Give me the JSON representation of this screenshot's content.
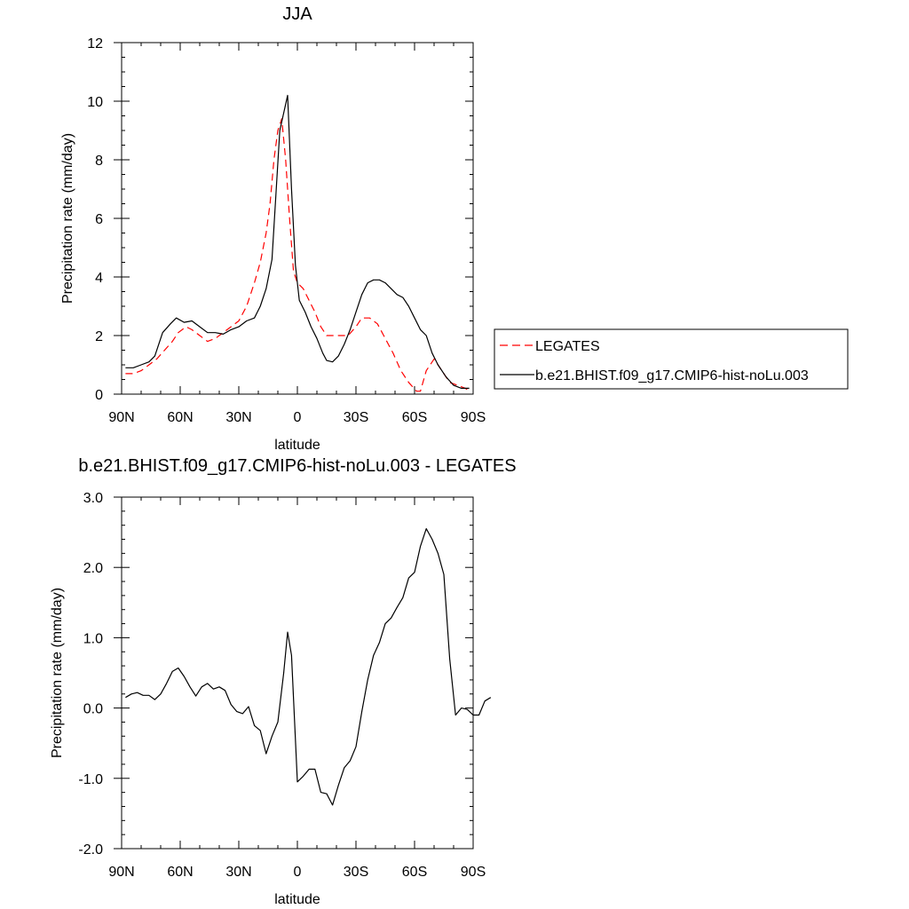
{
  "chart_data": [
    {
      "type": "line",
      "title": "JJA",
      "xlabel": "latitude",
      "ylabel": "Precipitation rate (mm/day)",
      "xlim": [
        90,
        -90
      ],
      "xticks": [
        {
          "value": 90,
          "label": "90N"
        },
        {
          "value": 60,
          "label": "60N"
        },
        {
          "value": 30,
          "label": "30N"
        },
        {
          "value": 0,
          "label": "0"
        },
        {
          "value": -30,
          "label": "30S"
        },
        {
          "value": -60,
          "label": "60S"
        },
        {
          "value": -90,
          "label": "90S"
        }
      ],
      "ylim": [
        0,
        12
      ],
      "yticks": [
        {
          "value": 0,
          "label": "0"
        },
        {
          "value": 2,
          "label": "2"
        },
        {
          "value": 4,
          "label": "4"
        },
        {
          "value": 6,
          "label": "6"
        },
        {
          "value": 8,
          "label": "8"
        },
        {
          "value": 10,
          "label": "10"
        },
        {
          "value": 12,
          "label": "12"
        }
      ],
      "legend_placement": "right",
      "series": [
        {
          "name": "LEGATES",
          "color": "#ff0000",
          "dash": "dashed",
          "points": [
            [
              88,
              0.7
            ],
            [
              84,
              0.7
            ],
            [
              80,
              0.8
            ],
            [
              76,
              1.0
            ],
            [
              72,
              1.2
            ],
            [
              68,
              1.5
            ],
            [
              64,
              1.8
            ],
            [
              61,
              2.1
            ],
            [
              57,
              2.3
            ],
            [
              54,
              2.2
            ],
            [
              50,
              2.0
            ],
            [
              46,
              1.8
            ],
            [
              42,
              1.9
            ],
            [
              38,
              2.1
            ],
            [
              34,
              2.3
            ],
            [
              30,
              2.5
            ],
            [
              26,
              3.0
            ],
            [
              22,
              3.8
            ],
            [
              19,
              4.5
            ],
            [
              16,
              5.5
            ],
            [
              14,
              6.5
            ],
            [
              12,
              8.0
            ],
            [
              10,
              9.0
            ],
            [
              8,
              9.4
            ],
            [
              6,
              8.0
            ],
            [
              4,
              6.0
            ],
            [
              2,
              4.2
            ],
            [
              0,
              3.8
            ],
            [
              -3,
              3.6
            ],
            [
              -6,
              3.2
            ],
            [
              -9,
              2.8
            ],
            [
              -12,
              2.3
            ],
            [
              -15,
              2.0
            ],
            [
              -18,
              2.0
            ],
            [
              -22,
              2.0
            ],
            [
              -26,
              2.0
            ],
            [
              -30,
              2.3
            ],
            [
              -33,
              2.6
            ],
            [
              -37,
              2.6
            ],
            [
              -41,
              2.4
            ],
            [
              -45,
              1.9
            ],
            [
              -49,
              1.4
            ],
            [
              -53,
              0.8
            ],
            [
              -57,
              0.4
            ],
            [
              -61,
              0.1
            ],
            [
              -63,
              0.1
            ],
            [
              -66,
              0.8
            ],
            [
              -70,
              1.2
            ],
            [
              -74,
              0.8
            ],
            [
              -78,
              0.4
            ],
            [
              -82,
              0.3
            ],
            [
              -86,
              0.2
            ],
            [
              -88,
              0.1
            ]
          ]
        },
        {
          "name": "b.e21.BHIST.f09_g17.CMIP6-hist-noLu.003",
          "color": "#000000",
          "dash": "solid",
          "points": [
            [
              88,
              0.9
            ],
            [
              84,
              0.9
            ],
            [
              80,
              1.0
            ],
            [
              76,
              1.1
            ],
            [
              73,
              1.3
            ],
            [
              69,
              2.1
            ],
            [
              65,
              2.4
            ],
            [
              62,
              2.6
            ],
            [
              58,
              2.45
            ],
            [
              54,
              2.5
            ],
            [
              50,
              2.3
            ],
            [
              46,
              2.1
            ],
            [
              42,
              2.1
            ],
            [
              38,
              2.05
            ],
            [
              34,
              2.2
            ],
            [
              30,
              2.3
            ],
            [
              26,
              2.5
            ],
            [
              22,
              2.6
            ],
            [
              19,
              3.0
            ],
            [
              16,
              3.6
            ],
            [
              13,
              4.6
            ],
            [
              11,
              6.8
            ],
            [
              9,
              9.0
            ],
            [
              7,
              9.6
            ],
            [
              5,
              10.2
            ],
            [
              3,
              7.0
            ],
            [
              1,
              4.4
            ],
            [
              -1,
              3.2
            ],
            [
              -4,
              2.8
            ],
            [
              -7,
              2.3
            ],
            [
              -10,
              1.9
            ],
            [
              -13,
              1.4
            ],
            [
              -15,
              1.15
            ],
            [
              -18,
              1.1
            ],
            [
              -21,
              1.3
            ],
            [
              -24,
              1.7
            ],
            [
              -27,
              2.2
            ],
            [
              -30,
              2.8
            ],
            [
              -33,
              3.4
            ],
            [
              -36,
              3.8
            ],
            [
              -39,
              3.9
            ],
            [
              -42,
              3.9
            ],
            [
              -45,
              3.8
            ],
            [
              -48,
              3.6
            ],
            [
              -51,
              3.4
            ],
            [
              -54,
              3.3
            ],
            [
              -57,
              3.0
            ],
            [
              -60,
              2.6
            ],
            [
              -63,
              2.2
            ],
            [
              -66,
              2.0
            ],
            [
              -69,
              1.4
            ],
            [
              -72,
              1.0
            ],
            [
              -76,
              0.6
            ],
            [
              -80,
              0.3
            ],
            [
              -84,
              0.2
            ],
            [
              -88,
              0.2
            ]
          ]
        }
      ]
    },
    {
      "type": "line",
      "title": "b.e21.BHIST.f09_g17.CMIP6-hist-noLu.003 - LEGATES",
      "xlabel": "latitude",
      "ylabel": "Precipitation rate (mm/day)",
      "xlim": [
        90,
        -90
      ],
      "xticks": [
        {
          "value": 90,
          "label": "90N"
        },
        {
          "value": 60,
          "label": "60N"
        },
        {
          "value": 30,
          "label": "30N"
        },
        {
          "value": 0,
          "label": "0"
        },
        {
          "value": -30,
          "label": "30S"
        },
        {
          "value": -60,
          "label": "60S"
        },
        {
          "value": -90,
          "label": "90S"
        }
      ],
      "ylim": [
        -2,
        3
      ],
      "yticks": [
        {
          "value": -2,
          "label": "-2.0"
        },
        {
          "value": -1,
          "label": "-1.0"
        },
        {
          "value": 0,
          "label": "0.0"
        },
        {
          "value": 1,
          "label": "1.0"
        },
        {
          "value": 2,
          "label": "2.0"
        },
        {
          "value": 3,
          "label": "3.0"
        }
      ],
      "series": [
        {
          "color": "#000000",
          "dash": "solid",
          "points": [
            [
              88,
              0.15
            ],
            [
              85,
              0.2
            ],
            [
              82,
              0.22
            ],
            [
              79,
              0.18
            ],
            [
              76,
              0.18
            ],
            [
              73,
              0.12
            ],
            [
              70,
              0.2
            ],
            [
              67,
              0.35
            ],
            [
              64,
              0.52
            ],
            [
              61,
              0.57
            ],
            [
              58,
              0.45
            ],
            [
              55,
              0.3
            ],
            [
              52,
              0.17
            ],
            [
              49,
              0.3
            ],
            [
              46,
              0.35
            ],
            [
              43,
              0.27
            ],
            [
              40,
              0.3
            ],
            [
              37,
              0.25
            ],
            [
              34,
              0.05
            ],
            [
              31,
              -0.05
            ],
            [
              28,
              -0.08
            ],
            [
              25,
              0.02
            ],
            [
              22,
              -0.25
            ],
            [
              19,
              -0.32
            ],
            [
              16,
              -0.65
            ],
            [
              13,
              -0.4
            ],
            [
              10,
              -0.2
            ],
            [
              7,
              0.5
            ],
            [
              5,
              1.08
            ],
            [
              3,
              0.75
            ],
            [
              0,
              -1.05
            ],
            [
              -3,
              -0.97
            ],
            [
              -6,
              -0.87
            ],
            [
              -9,
              -0.87
            ],
            [
              -12,
              -1.2
            ],
            [
              -15,
              -1.22
            ],
            [
              -18,
              -1.38
            ],
            [
              -21,
              -1.1
            ],
            [
              -24,
              -0.85
            ],
            [
              -27,
              -0.75
            ],
            [
              -30,
              -0.55
            ],
            [
              -33,
              -0.05
            ],
            [
              -36,
              0.4
            ],
            [
              -39,
              0.75
            ],
            [
              -42,
              0.93
            ],
            [
              -45,
              1.2
            ],
            [
              -48,
              1.28
            ],
            [
              -51,
              1.43
            ],
            [
              -54,
              1.57
            ],
            [
              -57,
              1.85
            ],
            [
              -60,
              1.93
            ],
            [
              -63,
              2.3
            ],
            [
              -66,
              2.55
            ],
            [
              -69,
              2.4
            ],
            [
              -72,
              2.2
            ],
            [
              -75,
              1.9
            ],
            [
              -78,
              0.7
            ],
            [
              -81,
              -0.1
            ],
            [
              -84,
              0.0
            ],
            [
              -87,
              -0.02
            ],
            [
              -90,
              -0.1
            ],
            [
              -93,
              -0.1
            ],
            [
              -96,
              0.1
            ],
            [
              -99,
              0.15
            ]
          ]
        }
      ]
    }
  ]
}
